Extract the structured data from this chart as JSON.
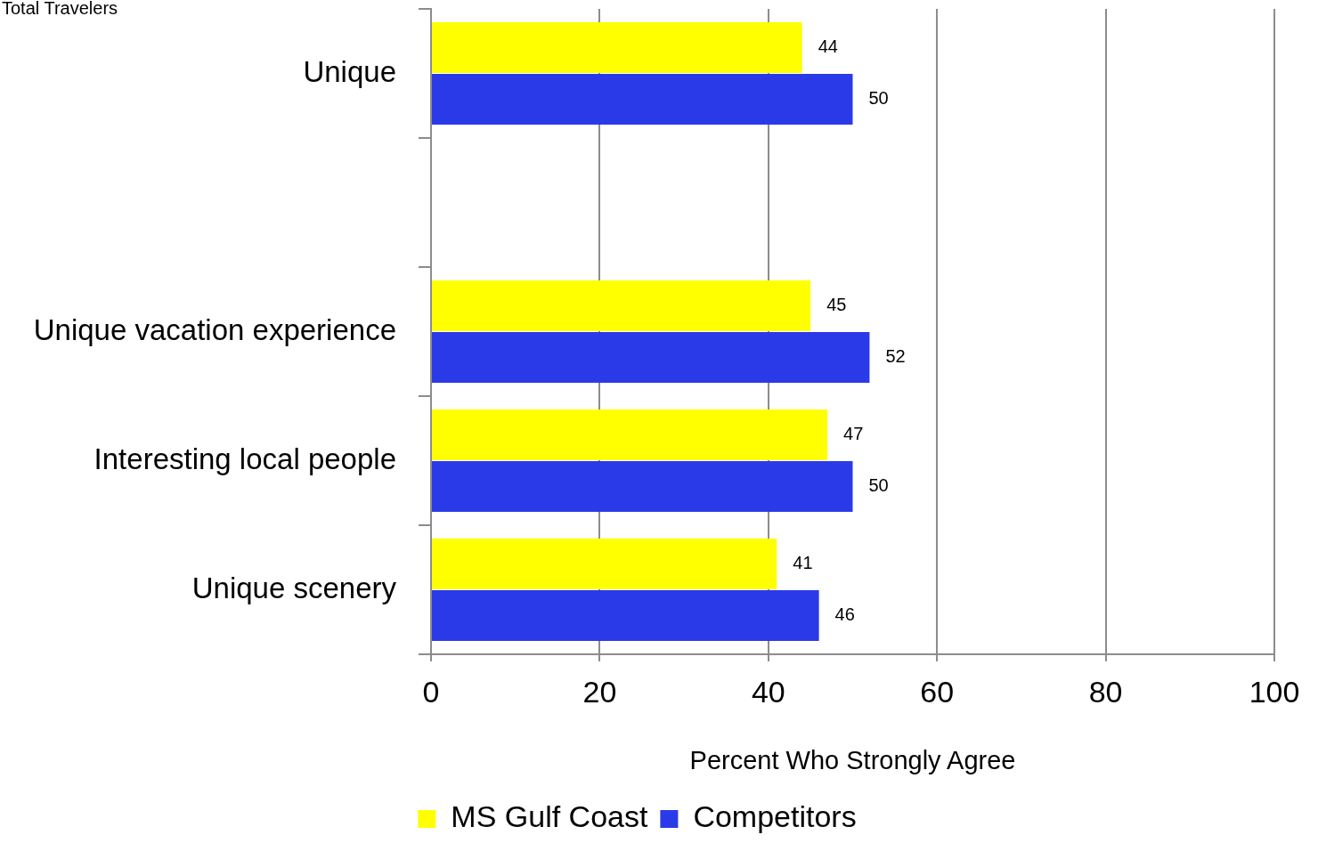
{
  "chart_data": {
    "type": "bar",
    "orientation": "horizontal",
    "title": "Total Travelers",
    "xlabel": "Percent Who Strongly Agree",
    "categories": [
      "Unique",
      null,
      "Unique vacation experience",
      "Interesting local people",
      "Unique scenery"
    ],
    "series": [
      {
        "name": "MS Gulf Coast",
        "color": "#ffff00",
        "values": [
          44,
          null,
          45,
          47,
          41
        ]
      },
      {
        "name": "Competitors",
        "color": "#2b3ae8",
        "values": [
          50,
          null,
          52,
          50,
          46
        ]
      }
    ],
    "xlim": [
      0,
      100
    ],
    "xticks": [
      0,
      20,
      40,
      60,
      80,
      100
    ],
    "grid": "x",
    "legend": "bottom",
    "data_labels": true
  }
}
